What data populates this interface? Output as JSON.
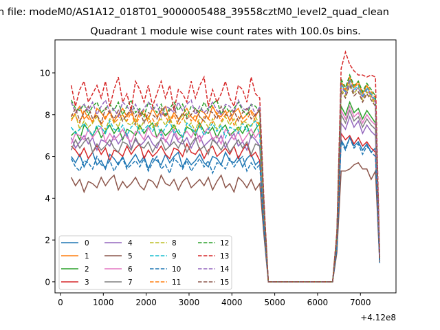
{
  "chart_data": {
    "type": "line",
    "suptitle": "n file: modeM0/AS1A12_018T01_9000005488_39558cztM0_level2_quad_clean",
    "title": "Quadrant 1 module wise count rates with 100.0s bins.",
    "xlabel": "",
    "ylabel": "",
    "x_offset_label": "+4.12e8",
    "xlim": [
      -128,
      7830
    ],
    "ylim": [
      -0.53,
      11.58
    ],
    "xticks": [
      0,
      1000,
      2000,
      3000,
      4000,
      5000,
      6000,
      7000
    ],
    "yticks": [
      0,
      2,
      4,
      6,
      8,
      10
    ],
    "legend_placement": "lower-left",
    "x_start": 250,
    "x_step": 100,
    "series": [
      {
        "name": "0",
        "color": "#1f77b4",
        "dashed": false,
        "values": [
          6.0,
          5.7,
          6.1,
          5.5,
          5.9,
          6.2,
          5.6,
          5.8,
          5.4,
          6.1,
          5.9,
          5.6,
          6.0,
          5.5,
          5.8,
          6.1,
          5.7,
          6.0,
          5.4,
          5.9,
          5.8,
          5.6,
          6.1,
          5.7,
          6.0,
          6.2,
          5.5,
          5.9,
          5.6,
          5.8,
          6.1,
          5.7,
          5.5,
          6.0,
          5.9,
          5.6,
          6.2,
          5.8,
          5.7,
          6.0,
          5.5,
          5.9,
          6.1,
          5.6,
          5.8,
          2.6,
          0,
          0,
          0,
          0,
          0,
          0,
          0,
          0,
          0,
          0,
          0,
          0,
          0,
          0,
          0,
          0,
          1.6,
          6.8,
          6.4,
          6.9,
          6.5,
          6.7,
          6.3,
          6.6,
          6.2,
          6.4,
          0.9
        ]
      },
      {
        "name": "1",
        "color": "#ff7f0e",
        "dashed": false,
        "values": [
          7.7,
          8.1,
          8.4,
          7.8,
          8.0,
          7.6,
          8.3,
          8.1,
          7.8,
          8.2,
          7.7,
          8.0,
          8.3,
          7.9,
          8.2,
          7.6,
          8.1,
          8.0,
          7.8,
          8.3,
          7.9,
          8.2,
          8.4,
          7.7,
          8.1,
          7.8,
          8.0,
          8.3,
          7.9,
          7.7,
          8.2,
          8.1,
          7.8,
          8.4,
          8.0,
          7.9,
          8.2,
          7.7,
          8.1,
          8.3,
          7.8,
          8.0,
          8.2,
          7.9,
          8.3,
          3.6,
          0,
          0,
          0,
          0,
          0,
          0,
          0,
          0,
          0,
          0,
          0,
          0,
          0,
          0,
          0,
          0,
          2.3,
          9.5,
          9.1,
          9.8,
          9.3,
          9.6,
          9.0,
          9.4,
          8.9,
          8.6,
          1.2
        ]
      },
      {
        "name": "2",
        "color": "#2ca02c",
        "dashed": false,
        "values": [
          7.0,
          7.2,
          6.8,
          7.5,
          7.3,
          7.0,
          7.4,
          6.9,
          7.2,
          7.5,
          7.1,
          7.4,
          6.8,
          7.3,
          7.2,
          7.0,
          7.5,
          7.1,
          7.4,
          7.6,
          6.9,
          7.3,
          7.0,
          7.2,
          7.5,
          7.1,
          6.9,
          7.4,
          7.3,
          7.0,
          7.6,
          7.2,
          7.1,
          7.4,
          6.9,
          7.3,
          7.5,
          7.0,
          7.2,
          7.4,
          7.1,
          7.5,
          6.9,
          7.3,
          7.6,
          3.2,
          0,
          0,
          0,
          0,
          0,
          0,
          0,
          0,
          0,
          0,
          0,
          0,
          0,
          0,
          0,
          0,
          2.0,
          8.4,
          8.0,
          8.6,
          8.1,
          8.3,
          7.8,
          8.2,
          7.9,
          7.6,
          1.1
        ]
      },
      {
        "name": "3",
        "color": "#d62728",
        "dashed": false,
        "values": [
          6.5,
          6.3,
          6.0,
          6.4,
          5.9,
          6.2,
          6.5,
          6.1,
          6.4,
          5.8,
          6.3,
          6.2,
          6.0,
          6.5,
          6.1,
          6.4,
          6.6,
          5.9,
          6.3,
          6.0,
          6.2,
          6.5,
          6.1,
          5.9,
          6.4,
          6.3,
          6.0,
          6.6,
          6.2,
          6.1,
          6.4,
          5.9,
          6.3,
          6.5,
          6.0,
          6.2,
          6.4,
          6.1,
          6.5,
          5.9,
          6.3,
          6.6,
          6.0,
          6.2,
          5.8,
          2.8,
          0,
          0,
          0,
          0,
          0,
          0,
          0,
          0,
          0,
          0,
          0,
          0,
          0,
          0,
          0,
          0,
          1.7,
          7.1,
          6.8,
          7.0,
          6.6,
          6.9,
          6.5,
          6.7,
          6.4,
          6.2,
          1.0
        ]
      },
      {
        "name": "4",
        "color": "#9467bd",
        "dashed": false,
        "values": [
          6.9,
          6.4,
          6.7,
          7.0,
          6.6,
          6.9,
          6.3,
          6.8,
          6.7,
          6.5,
          7.0,
          6.6,
          6.9,
          7.1,
          6.4,
          6.8,
          6.5,
          6.7,
          7.0,
          6.6,
          6.4,
          6.9,
          6.8,
          6.5,
          7.1,
          6.7,
          6.6,
          6.9,
          6.4,
          6.8,
          7.0,
          6.5,
          6.7,
          6.9,
          6.6,
          7.0,
          6.4,
          6.8,
          7.1,
          6.5,
          6.7,
          6.3,
          7.0,
          6.8,
          6.5,
          3.0,
          0,
          0,
          0,
          0,
          0,
          0,
          0,
          0,
          0,
          0,
          0,
          0,
          0,
          0,
          0,
          0,
          1.9,
          7.6,
          7.3,
          7.9,
          7.4,
          7.7,
          7.1,
          7.5,
          7.2,
          7.0,
          1.0
        ]
      },
      {
        "name": "5",
        "color": "#8c564b",
        "dashed": false,
        "values": [
          5.0,
          4.6,
          4.9,
          4.3,
          4.8,
          4.7,
          4.5,
          5.0,
          4.6,
          4.9,
          5.1,
          4.4,
          4.8,
          4.5,
          4.7,
          5.0,
          4.6,
          4.4,
          4.9,
          4.8,
          4.5,
          5.1,
          4.7,
          4.6,
          4.9,
          4.4,
          4.8,
          5.0,
          4.5,
          4.7,
          4.9,
          4.6,
          5.0,
          4.4,
          4.8,
          5.1,
          4.5,
          4.7,
          4.3,
          5.0,
          4.8,
          4.5,
          4.9,
          4.4,
          4.7,
          2.2,
          0,
          0,
          0,
          0,
          0,
          0,
          0,
          0,
          0,
          0,
          0,
          0,
          0,
          0,
          0,
          0,
          1.4,
          5.3,
          5.3,
          5.4,
          5.6,
          5.7,
          5.4,
          5.4,
          4.9,
          5.3,
          0.9
        ]
      },
      {
        "name": "6",
        "color": "#e377c2",
        "dashed": false,
        "values": [
          6.6,
          7.1,
          7.0,
          6.8,
          7.3,
          6.9,
          7.2,
          7.4,
          6.7,
          7.1,
          6.8,
          7.0,
          7.3,
          6.9,
          6.7,
          7.2,
          7.1,
          6.8,
          7.4,
          7.0,
          6.9,
          7.2,
          6.7,
          7.1,
          7.3,
          6.8,
          7.0,
          7.2,
          6.9,
          7.3,
          6.7,
          7.1,
          7.4,
          6.8,
          7.0,
          6.6,
          7.3,
          7.1,
          6.8,
          7.2,
          6.7,
          7.0,
          7.3,
          6.9,
          7.2,
          3.1,
          0,
          0,
          0,
          0,
          0,
          0,
          0,
          0,
          0,
          0,
          0,
          0,
          0,
          0,
          0,
          0,
          2.0,
          8.2,
          7.8,
          8.4,
          7.9,
          8.1,
          7.6,
          8.0,
          7.7,
          7.5,
          1.0
        ]
      },
      {
        "name": "7",
        "color": "#7f7f7f",
        "dashed": false,
        "values": [
          6.3,
          6.8,
          6.4,
          6.7,
          6.9,
          6.2,
          6.6,
          6.3,
          6.5,
          6.8,
          6.4,
          6.2,
          6.7,
          6.6,
          6.3,
          6.9,
          6.5,
          6.4,
          6.7,
          6.2,
          6.6,
          6.8,
          6.3,
          6.5,
          6.7,
          6.4,
          6.8,
          6.2,
          6.6,
          6.9,
          6.3,
          6.5,
          6.1,
          6.8,
          6.6,
          6.3,
          6.7,
          6.2,
          6.5,
          6.8,
          6.4,
          6.7,
          6.1,
          6.6,
          6.5,
          2.9,
          0,
          0,
          0,
          0,
          0,
          0,
          0,
          0,
          0,
          0,
          0,
          0,
          0,
          0,
          0,
          0,
          1.8,
          8.0,
          7.6,
          8.2,
          7.7,
          7.9,
          7.4,
          7.8,
          7.5,
          7.3,
          1.0
        ]
      },
      {
        "name": "8",
        "color": "#bcbd22",
        "dashed": true,
        "values": [
          7.8,
          8.0,
          7.3,
          7.7,
          7.4,
          7.6,
          7.9,
          7.5,
          7.3,
          7.8,
          7.7,
          7.4,
          8.0,
          7.6,
          7.5,
          7.8,
          7.3,
          7.7,
          7.9,
          7.4,
          7.6,
          7.8,
          7.5,
          7.9,
          7.3,
          7.7,
          8.0,
          7.4,
          7.6,
          7.2,
          7.9,
          7.7,
          7.4,
          7.8,
          7.3,
          7.6,
          7.9,
          7.5,
          7.8,
          7.2,
          7.7,
          7.6,
          7.4,
          7.9,
          7.5,
          3.4,
          0,
          0,
          0,
          0,
          0,
          0,
          0,
          0,
          0,
          0,
          0,
          0,
          0,
          0,
          0,
          0,
          2.2,
          9.2,
          8.9,
          9.5,
          9.0,
          9.3,
          8.7,
          9.1,
          8.8,
          8.5,
          1.1
        ]
      },
      {
        "name": "9",
        "color": "#17becf",
        "dashed": true,
        "values": [
          7.4,
          7.1,
          7.3,
          7.6,
          7.2,
          7.0,
          7.5,
          7.4,
          7.1,
          7.7,
          7.3,
          7.2,
          7.5,
          7.0,
          7.4,
          7.6,
          7.1,
          7.3,
          7.5,
          7.2,
          7.6,
          7.0,
          7.4,
          7.7,
          7.1,
          7.3,
          6.9,
          7.6,
          7.4,
          7.1,
          7.5,
          7.0,
          7.3,
          7.6,
          7.2,
          7.5,
          6.9,
          7.4,
          7.3,
          7.1,
          7.6,
          7.2,
          7.5,
          7.7,
          7.0,
          3.3,
          0,
          0,
          0,
          0,
          0,
          0,
          0,
          0,
          0,
          0,
          0,
          0,
          0,
          0,
          0,
          0,
          2.1,
          9.5,
          9.1,
          9.7,
          9.2,
          9.4,
          8.9,
          9.3,
          9.0,
          8.7,
          1.1
        ]
      },
      {
        "name": "10",
        "color": "#1f77b4",
        "dashed": true,
        "values": [
          5.9,
          5.5,
          5.3,
          5.8,
          5.7,
          5.4,
          6.0,
          5.6,
          5.5,
          5.8,
          5.3,
          5.7,
          5.9,
          5.4,
          5.6,
          5.8,
          5.5,
          5.9,
          5.3,
          5.7,
          6.0,
          5.4,
          5.6,
          5.2,
          5.9,
          5.7,
          5.4,
          5.8,
          5.3,
          5.6,
          5.9,
          5.5,
          5.8,
          5.2,
          5.7,
          5.6,
          5.4,
          5.9,
          5.5,
          5.8,
          6.0,
          5.3,
          5.7,
          5.4,
          5.6,
          2.5,
          0,
          0,
          0,
          0,
          0,
          0,
          0,
          0,
          0,
          0,
          0,
          0,
          0,
          0,
          0,
          0,
          1.6,
          6.7,
          6.3,
          6.9,
          6.4,
          6.6,
          6.1,
          6.5,
          6.2,
          6.0,
          0.9
        ]
      },
      {
        "name": "11",
        "color": "#ff7f0e",
        "dashed": true,
        "values": [
          8.0,
          7.9,
          7.6,
          8.2,
          7.8,
          7.7,
          8.0,
          7.5,
          7.9,
          8.1,
          7.6,
          7.8,
          8.0,
          7.7,
          8.1,
          7.5,
          7.9,
          8.2,
          7.6,
          7.8,
          7.4,
          8.1,
          7.9,
          7.6,
          8.0,
          7.5,
          7.8,
          8.1,
          7.7,
          8.0,
          7.4,
          7.9,
          7.8,
          7.6,
          8.1,
          7.7,
          8.0,
          8.2,
          7.5,
          7.9,
          7.6,
          7.8,
          8.1,
          7.7,
          7.5,
          3.5,
          0,
          0,
          0,
          0,
          0,
          0,
          0,
          0,
          0,
          0,
          0,
          0,
          0,
          0,
          0,
          0,
          2.2,
          9.6,
          9.2,
          9.8,
          9.3,
          9.5,
          9.0,
          9.4,
          9.1,
          8.8,
          1.2
        ]
      },
      {
        "name": "12",
        "color": "#2ca02c",
        "dashed": true,
        "values": [
          8.7,
          8.3,
          8.2,
          8.5,
          8.0,
          8.4,
          8.6,
          8.1,
          8.3,
          8.5,
          8.2,
          8.6,
          8.0,
          8.4,
          8.7,
          8.1,
          8.3,
          7.9,
          8.6,
          8.4,
          8.1,
          8.5,
          8.0,
          8.3,
          8.6,
          8.2,
          8.5,
          7.9,
          8.4,
          8.3,
          8.1,
          8.6,
          8.2,
          8.5,
          8.7,
          8.0,
          8.4,
          8.1,
          8.3,
          8.6,
          8.2,
          8.0,
          8.5,
          8.4,
          8.1,
          3.7,
          0,
          0,
          0,
          0,
          0,
          0,
          0,
          0,
          0,
          0,
          0,
          0,
          0,
          0,
          0,
          0,
          2.3,
          9.7,
          9.3,
          9.9,
          9.4,
          9.6,
          9.1,
          9.5,
          9.2,
          8.9,
          1.2
        ]
      },
      {
        "name": "13",
        "color": "#d62728",
        "dashed": true,
        "values": [
          9.4,
          8.4,
          9.2,
          9.6,
          8.6,
          9.0,
          9.4,
          8.8,
          9.6,
          8.4,
          9.2,
          9.8,
          8.6,
          9.0,
          8.2,
          9.6,
          9.2,
          8.6,
          9.4,
          8.4,
          9.0,
          9.6,
          8.8,
          9.4,
          8.2,
          9.2,
          9.0,
          8.6,
          9.6,
          8.8,
          9.4,
          9.8,
          8.4,
          9.2,
          8.6,
          9.0,
          9.6,
          8.8,
          8.4,
          9.4,
          9.2,
          8.6,
          9.8,
          9.0,
          8.8,
          3.9,
          0,
          0,
          0,
          0,
          0,
          0,
          0,
          0,
          0,
          0,
          0,
          0,
          0,
          0,
          0,
          0,
          2.4,
          10.2,
          11.0,
          10.4,
          10.1,
          9.9,
          9.9,
          9.8,
          9.9,
          9.8,
          1.3
        ]
      },
      {
        "name": "14",
        "color": "#9467bd",
        "dashed": true,
        "values": [
          8.6,
          8.1,
          8.3,
          8.5,
          8.2,
          8.6,
          8.0,
          8.4,
          8.7,
          8.1,
          8.3,
          7.9,
          8.6,
          8.4,
          8.1,
          8.5,
          8.0,
          8.3,
          8.6,
          8.2,
          8.5,
          7.9,
          8.4,
          8.3,
          8.1,
          8.6,
          8.2,
          8.5,
          8.7,
          8.0,
          8.4,
          8.1,
          8.3,
          8.6,
          8.2,
          8.0,
          8.5,
          8.4,
          8.1,
          8.7,
          8.3,
          8.2,
          8.5,
          8.0,
          8.4,
          3.6,
          0,
          0,
          0,
          0,
          0,
          0,
          0,
          0,
          0,
          0,
          0,
          0,
          0,
          0,
          0,
          0,
          2.2,
          9.4,
          9.0,
          9.6,
          9.1,
          9.3,
          8.8,
          9.2,
          8.9,
          8.6,
          1.2
        ]
      },
      {
        "name": "15",
        "color": "#8c564b",
        "dashed": true,
        "values": [
          7.9,
          8.3,
          7.7,
          8.1,
          8.4,
          7.8,
          8.0,
          7.6,
          8.3,
          8.1,
          7.8,
          8.2,
          7.7,
          8.0,
          8.3,
          7.9,
          8.2,
          7.6,
          8.1,
          8.0,
          7.8,
          8.3,
          7.9,
          8.2,
          8.4,
          7.7,
          8.1,
          7.8,
          8.0,
          8.3,
          7.9,
          7.7,
          8.2,
          8.1,
          7.8,
          8.4,
          8.0,
          7.9,
          8.2,
          7.7,
          8.1,
          8.3,
          7.8,
          8.0,
          8.2,
          3.5,
          0,
          0,
          0,
          0,
          0,
          0,
          0,
          0,
          0,
          0,
          0,
          0,
          0,
          0,
          0,
          0,
          2.2,
          9.1,
          8.8,
          9.4,
          8.9,
          9.1,
          8.6,
          9.0,
          8.7,
          8.4,
          1.1
        ]
      }
    ]
  }
}
